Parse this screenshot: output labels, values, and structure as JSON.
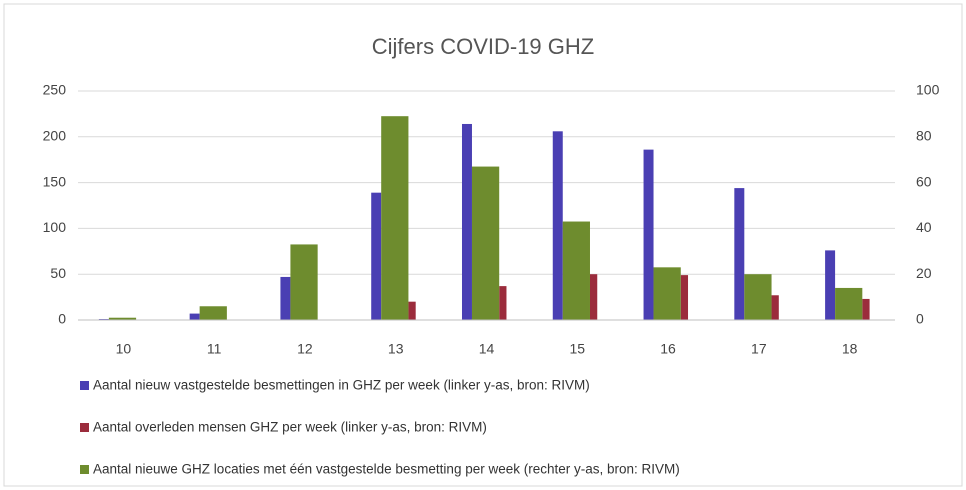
{
  "chart_data": {
    "type": "bar",
    "title": "Cijfers COVID-19 GHZ",
    "categories": [
      "10",
      "11",
      "12",
      "13",
      "14",
      "15",
      "16",
      "17",
      "18"
    ],
    "series": [
      {
        "name": "Aantal nieuw vastgestelde besmettingen in GHZ per week (linker y-as, bron: RIVM)",
        "color": "#4a3fb3",
        "values": [
          1,
          7,
          47,
          139,
          214,
          206,
          186,
          144,
          76
        ]
      },
      {
        "name": "Aantal overleden mensen GHZ per week (linker y-as, bron: RIVM)",
        "color": "#9b2c3c",
        "values": [
          0,
          0,
          0,
          20,
          37,
          50,
          49,
          27,
          23
        ]
      },
      {
        "name": "Aantal nieuwe GHZ locaties met één vastgestelde besmetting per week (rechter y-as, bron: RIVM)",
        "color": "#6e8c2e",
        "axis": "y2",
        "values": [
          1,
          6,
          33,
          89,
          67,
          43,
          23,
          20,
          14
        ]
      }
    ],
    "ylim": [
      0,
      250
    ],
    "yticks": [
      0,
      50,
      100,
      150,
      200,
      250
    ],
    "y2lim": [
      0,
      100
    ],
    "y2ticks": [
      0,
      20,
      40,
      60,
      80,
      100
    ],
    "grid": true
  }
}
